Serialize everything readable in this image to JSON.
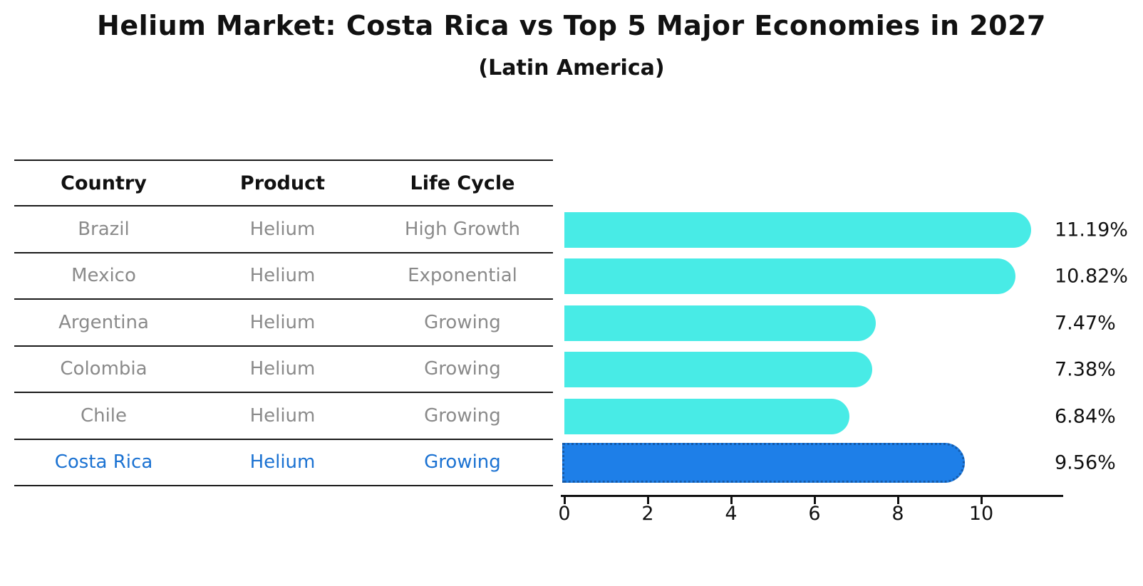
{
  "title": "Helium Market: Costa Rica vs Top 5 Major Economies in 2027",
  "subtitle": "(Latin America)",
  "table": {
    "headers": [
      "Country",
      "Product",
      "Life Cycle"
    ],
    "rows": [
      {
        "country": "Brazil",
        "product": "Helium",
        "life_cycle": "High Growth",
        "highlight": false
      },
      {
        "country": "Mexico",
        "product": "Helium",
        "life_cycle": "Exponential",
        "highlight": false
      },
      {
        "country": "Argentina",
        "product": "Helium",
        "life_cycle": "Growing",
        "highlight": false
      },
      {
        "country": "Colombia",
        "product": "Helium",
        "life_cycle": "Growing",
        "highlight": false
      },
      {
        "country": "Chile",
        "product": "Helium",
        "life_cycle": "Growing",
        "highlight": false
      },
      {
        "country": "Costa Rica",
        "product": "Helium",
        "life_cycle": "Growing",
        "highlight": true
      }
    ]
  },
  "chart_data": {
    "type": "bar",
    "orientation": "horizontal",
    "title": "Helium Market: Costa Rica vs Top 5 Major Economies in 2027",
    "subtitle": "(Latin America)",
    "categories": [
      "Brazil",
      "Mexico",
      "Argentina",
      "Colombia",
      "Chile",
      "Costa Rica"
    ],
    "values": [
      11.19,
      10.82,
      7.47,
      7.38,
      6.84,
      9.56
    ],
    "value_labels": [
      "11.19%",
      "10.82%",
      "7.47%",
      "7.38%",
      "6.84%",
      "9.56%"
    ],
    "highlight_index": 5,
    "xlim": [
      0,
      11.76
    ],
    "xticks": [
      "0",
      "2",
      "4",
      "6",
      "8",
      "10"
    ],
    "grid": false,
    "legend": false
  },
  "colors": {
    "bar": "#48ebe6",
    "highlight_bar": "#1e7fe8",
    "highlight_edge": "#155aa8",
    "highlight_text": "#1b72d2",
    "row_text": "#8a8a8a",
    "axis": "#111111"
  }
}
